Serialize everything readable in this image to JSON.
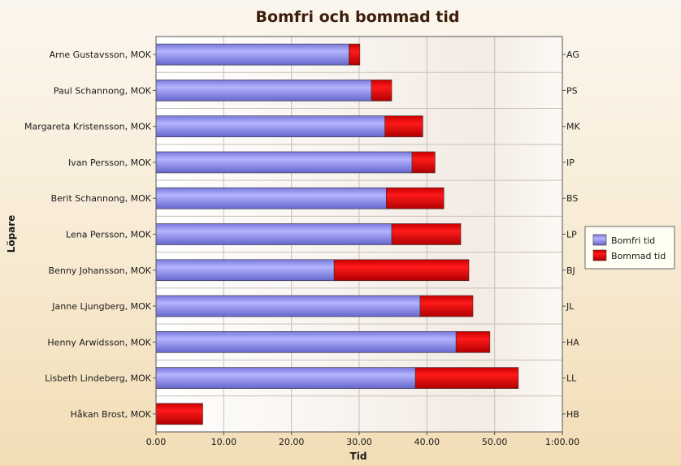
{
  "chart_data": {
    "type": "bar",
    "orientation": "horizontal",
    "stacked": true,
    "title": "Bomfri och bommad tid",
    "xlabel": "Tid",
    "ylabel": "Löpare",
    "xlim": [
      0,
      60
    ],
    "x_ticks": [
      0,
      10,
      20,
      30,
      40,
      50,
      60
    ],
    "x_tick_labels": [
      "0.00",
      "10.00",
      "20.00",
      "30.00",
      "40.00",
      "50.00",
      "1:00.00"
    ],
    "categories": [
      "Arne Gustavsson, MOK",
      "Paul Schannong, MOK",
      "Margareta Kristensson, MOK",
      "Ivan Persson, MOK",
      "Berit Schannong, MOK",
      "Lena Persson, MOK",
      "Benny Johansson, MOK",
      "Janne Ljungberg, MOK",
      "Henny Arwidsson, MOK",
      "Lisbeth Lindeberg, MOK",
      "Håkan Brost, MOK"
    ],
    "secondary_labels": [
      "AG",
      "PS",
      "MK",
      "IP",
      "BS",
      "LP",
      "BJ",
      "JL",
      "HA",
      "LL",
      "HB"
    ],
    "series": [
      {
        "name": "Bomfri tid",
        "color": "#8c8cf0",
        "values": [
          28.5,
          31.8,
          33.8,
          37.8,
          34.0,
          34.8,
          26.3,
          39.0,
          44.3,
          38.3,
          0
        ]
      },
      {
        "name": "Bommad tid",
        "color": "#e01010",
        "values": [
          1.6,
          3.0,
          5.6,
          3.4,
          8.5,
          10.2,
          19.9,
          7.8,
          5.0,
          15.2,
          6.9
        ]
      }
    ],
    "grid": true,
    "legend_position": "right"
  }
}
